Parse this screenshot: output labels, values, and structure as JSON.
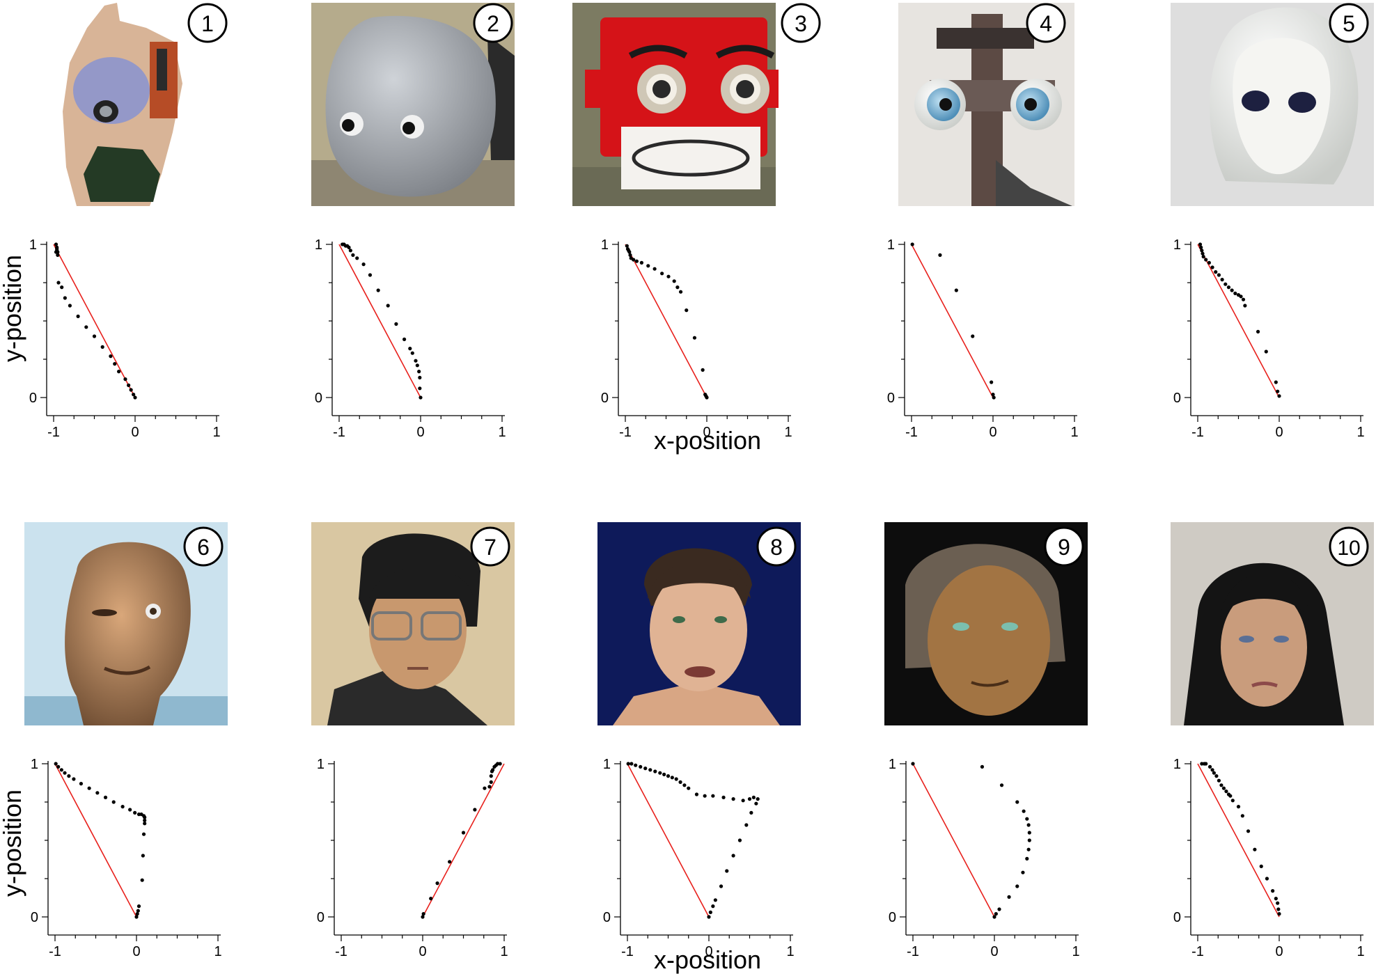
{
  "figure": {
    "ylabel": "y-position",
    "xlabel": "x-position",
    "tick_x": [
      "-1",
      "0",
      "1"
    ],
    "tick_y": [
      "0",
      "1"
    ],
    "panel_numbers": [
      "1",
      "2",
      "3",
      "4",
      "5",
      "6",
      "7",
      "8",
      "9",
      "10"
    ],
    "colors": {
      "reference_line": "#e8201c",
      "points": "#000000",
      "axis": "#000000"
    },
    "photo_subjects": [
      "humanoid robot head with exposed mechanics and a camera eye",
      "smooth grey child-like robot head with large round eyes",
      "red box-shaped robot head with big eyes and a grille mouth",
      "mechanical robot with blue spherical eyes on a frame",
      "white glossy oval robot head with dark eyes",
      "bald android head with one eye winking",
      "android copy of a man with dark hair and glasses",
      "animated young man face on a dark blue background",
      "realistic older male face with grey hair",
      "female android with long black hair"
    ]
  },
  "chart_data": [
    {
      "type": "scatter",
      "panel": "1",
      "xlim": [
        -1,
        1
      ],
      "ylim": [
        0,
        1
      ],
      "reference_line": [
        [
          -1,
          1
        ],
        [
          0,
          0
        ]
      ],
      "points": [
        [
          -0.97,
          1.0
        ],
        [
          -0.96,
          0.98
        ],
        [
          -0.96,
          0.97
        ],
        [
          -0.96,
          0.96
        ],
        [
          -0.97,
          0.95
        ],
        [
          -0.95,
          0.95
        ],
        [
          -0.95,
          0.93
        ],
        [
          -0.94,
          0.75
        ],
        [
          -0.9,
          0.72
        ],
        [
          -0.86,
          0.65
        ],
        [
          -0.8,
          0.6
        ],
        [
          -0.7,
          0.53
        ],
        [
          -0.6,
          0.46
        ],
        [
          -0.5,
          0.4
        ],
        [
          -0.4,
          0.33
        ],
        [
          -0.3,
          0.27
        ],
        [
          -0.25,
          0.22
        ],
        [
          -0.2,
          0.17
        ],
        [
          -0.12,
          0.12
        ],
        [
          -0.08,
          0.08
        ],
        [
          -0.05,
          0.05
        ],
        [
          -0.02,
          0.02
        ],
        [
          0.0,
          0.0
        ]
      ]
    },
    {
      "type": "scatter",
      "panel": "2",
      "xlim": [
        -1,
        1
      ],
      "ylim": [
        0,
        1
      ],
      "reference_line": [
        [
          -1,
          1
        ],
        [
          0,
          0
        ]
      ],
      "points": [
        [
          -0.96,
          1.0
        ],
        [
          -0.94,
          1.0
        ],
        [
          -0.92,
          0.99
        ],
        [
          -0.9,
          0.99
        ],
        [
          -0.88,
          0.98
        ],
        [
          -0.86,
          0.96
        ],
        [
          -0.83,
          0.93
        ],
        [
          -0.78,
          0.91
        ],
        [
          -0.7,
          0.87
        ],
        [
          -0.62,
          0.8
        ],
        [
          -0.52,
          0.7
        ],
        [
          -0.4,
          0.6
        ],
        [
          -0.3,
          0.48
        ],
        [
          -0.2,
          0.38
        ],
        [
          -0.13,
          0.32
        ],
        [
          -0.1,
          0.29
        ],
        [
          -0.06,
          0.24
        ],
        [
          -0.04,
          0.21
        ],
        [
          -0.02,
          0.17
        ],
        [
          -0.01,
          0.13
        ],
        [
          -0.01,
          0.06
        ],
        [
          0.0,
          0.0
        ]
      ]
    },
    {
      "type": "scatter",
      "panel": "3",
      "xlim": [
        -1,
        1
      ],
      "ylim": [
        0,
        1
      ],
      "reference_line": [
        [
          -1,
          1
        ],
        [
          0,
          0
        ]
      ],
      "points": [
        [
          -0.98,
          0.99
        ],
        [
          -0.97,
          0.97
        ],
        [
          -0.96,
          0.96
        ],
        [
          -0.95,
          0.95
        ],
        [
          -0.94,
          0.93
        ],
        [
          -0.93,
          0.91
        ],
        [
          -0.9,
          0.9
        ],
        [
          -0.86,
          0.89
        ],
        [
          -0.8,
          0.88
        ],
        [
          -0.72,
          0.86
        ],
        [
          -0.64,
          0.84
        ],
        [
          -0.55,
          0.81
        ],
        [
          -0.47,
          0.79
        ],
        [
          -0.4,
          0.76
        ],
        [
          -0.36,
          0.72
        ],
        [
          -0.32,
          0.69
        ],
        [
          -0.25,
          0.57
        ],
        [
          -0.15,
          0.39
        ],
        [
          -0.05,
          0.18
        ],
        [
          -0.02,
          0.02
        ],
        [
          -0.01,
          0.01
        ],
        [
          0.0,
          0.0
        ]
      ]
    },
    {
      "type": "scatter",
      "panel": "4",
      "xlim": [
        -1,
        1
      ],
      "ylim": [
        0,
        1
      ],
      "reference_line": [
        [
          -1,
          1
        ],
        [
          0,
          0
        ]
      ],
      "points": [
        [
          -0.99,
          1.0
        ],
        [
          -0.65,
          0.93
        ],
        [
          -0.45,
          0.7
        ],
        [
          -0.25,
          0.4
        ],
        [
          -0.02,
          0.1
        ],
        [
          0.0,
          0.02
        ],
        [
          0.01,
          0.0
        ]
      ]
    },
    {
      "type": "scatter",
      "panel": "5",
      "xlim": [
        -1,
        1
      ],
      "ylim": [
        0,
        1
      ],
      "reference_line": [
        [
          -1,
          1
        ],
        [
          0,
          0
        ]
      ],
      "points": [
        [
          -0.97,
          1.0
        ],
        [
          -0.96,
          0.98
        ],
        [
          -0.95,
          0.96
        ],
        [
          -0.94,
          0.94
        ],
        [
          -0.93,
          0.92
        ],
        [
          -0.9,
          0.9
        ],
        [
          -0.86,
          0.88
        ],
        [
          -0.82,
          0.85
        ],
        [
          -0.78,
          0.82
        ],
        [
          -0.74,
          0.8
        ],
        [
          -0.7,
          0.77
        ],
        [
          -0.66,
          0.74
        ],
        [
          -0.62,
          0.72
        ],
        [
          -0.58,
          0.7
        ],
        [
          -0.54,
          0.68
        ],
        [
          -0.5,
          0.67
        ],
        [
          -0.47,
          0.66
        ],
        [
          -0.44,
          0.64
        ],
        [
          -0.42,
          0.6
        ],
        [
          -0.26,
          0.43
        ],
        [
          -0.16,
          0.3
        ],
        [
          -0.04,
          0.1
        ],
        [
          -0.02,
          0.04
        ],
        [
          0.0,
          0.01
        ]
      ]
    },
    {
      "type": "scatter",
      "panel": "6",
      "xlim": [
        -1,
        1
      ],
      "ylim": [
        0,
        1
      ],
      "reference_line": [
        [
          -1,
          1
        ],
        [
          0,
          0
        ]
      ],
      "points": [
        [
          -0.99,
          1.0
        ],
        [
          -0.96,
          0.98
        ],
        [
          -0.92,
          0.96
        ],
        [
          -0.88,
          0.94
        ],
        [
          -0.83,
          0.92
        ],
        [
          -0.77,
          0.9
        ],
        [
          -0.68,
          0.87
        ],
        [
          -0.58,
          0.84
        ],
        [
          -0.48,
          0.81
        ],
        [
          -0.38,
          0.78
        ],
        [
          -0.28,
          0.75
        ],
        [
          -0.17,
          0.72
        ],
        [
          -0.08,
          0.7
        ],
        [
          -0.02,
          0.68
        ],
        [
          0.03,
          0.67
        ],
        [
          0.06,
          0.67
        ],
        [
          0.09,
          0.66
        ],
        [
          0.1,
          0.65
        ],
        [
          0.1,
          0.63
        ],
        [
          0.1,
          0.61
        ],
        [
          0.09,
          0.54
        ],
        [
          0.08,
          0.4
        ],
        [
          0.07,
          0.24
        ],
        [
          0.03,
          0.07
        ],
        [
          0.02,
          0.04
        ],
        [
          0.01,
          0.02
        ],
        [
          0.0,
          0.0
        ]
      ]
    },
    {
      "type": "scatter",
      "panel": "7",
      "xlim": [
        -1,
        1
      ],
      "ylim": [
        0,
        1
      ],
      "reference_line": [
        [
          0,
          0
        ],
        [
          1,
          1
        ]
      ],
      "points": [
        [
          0.0,
          0.0
        ],
        [
          0.01,
          0.02
        ],
        [
          0.1,
          0.12
        ],
        [
          0.18,
          0.22
        ],
        [
          0.33,
          0.36
        ],
        [
          0.5,
          0.55
        ],
        [
          0.64,
          0.7
        ],
        [
          0.76,
          0.84
        ],
        [
          0.82,
          0.85
        ],
        [
          0.84,
          0.88
        ],
        [
          0.84,
          0.92
        ],
        [
          0.85,
          0.95
        ],
        [
          0.86,
          0.96
        ],
        [
          0.88,
          0.98
        ],
        [
          0.9,
          0.99
        ],
        [
          0.92,
          1.0
        ],
        [
          0.95,
          1.0
        ]
      ]
    },
    {
      "type": "scatter",
      "panel": "8",
      "xlim": [
        -1,
        1
      ],
      "ylim": [
        0,
        1
      ],
      "reference_line": [
        [
          -1,
          1
        ],
        [
          0,
          0
        ]
      ],
      "points": [
        [
          -0.99,
          1.0
        ],
        [
          -0.95,
          1.0
        ],
        [
          -0.9,
          0.99
        ],
        [
          -0.84,
          0.98
        ],
        [
          -0.78,
          0.97
        ],
        [
          -0.72,
          0.96
        ],
        [
          -0.66,
          0.95
        ],
        [
          -0.6,
          0.94
        ],
        [
          -0.55,
          0.93
        ],
        [
          -0.5,
          0.92
        ],
        [
          -0.45,
          0.91
        ],
        [
          -0.4,
          0.9
        ],
        [
          -0.35,
          0.88
        ],
        [
          -0.3,
          0.86
        ],
        [
          -0.25,
          0.84
        ],
        [
          -0.15,
          0.8
        ],
        [
          -0.05,
          0.79
        ],
        [
          0.05,
          0.79
        ],
        [
          0.18,
          0.78
        ],
        [
          0.3,
          0.77
        ],
        [
          0.42,
          0.76
        ],
        [
          0.5,
          0.77
        ],
        [
          0.55,
          0.78
        ],
        [
          0.6,
          0.77
        ],
        [
          0.58,
          0.74
        ],
        [
          0.52,
          0.68
        ],
        [
          0.46,
          0.6
        ],
        [
          0.38,
          0.5
        ],
        [
          0.3,
          0.4
        ],
        [
          0.22,
          0.3
        ],
        [
          0.15,
          0.2
        ],
        [
          0.08,
          0.11
        ],
        [
          0.05,
          0.07
        ],
        [
          0.02,
          0.03
        ],
        [
          0.0,
          0.0
        ]
      ]
    },
    {
      "type": "scatter",
      "panel": "9",
      "xlim": [
        -1,
        1
      ],
      "ylim": [
        0,
        1
      ],
      "reference_line": [
        [
          -1,
          1
        ],
        [
          0,
          0
        ]
      ],
      "points": [
        [
          -1.0,
          1.0
        ],
        [
          -0.15,
          0.98
        ],
        [
          0.09,
          0.86
        ],
        [
          0.28,
          0.75
        ],
        [
          0.36,
          0.69
        ],
        [
          0.4,
          0.64
        ],
        [
          0.42,
          0.6
        ],
        [
          0.43,
          0.55
        ],
        [
          0.43,
          0.5
        ],
        [
          0.42,
          0.44
        ],
        [
          0.4,
          0.38
        ],
        [
          0.35,
          0.29
        ],
        [
          0.28,
          0.2
        ],
        [
          0.18,
          0.13
        ],
        [
          0.06,
          0.05
        ],
        [
          0.02,
          0.02
        ],
        [
          0.0,
          0.0
        ]
      ]
    },
    {
      "type": "scatter",
      "panel": "10",
      "xlim": [
        -1,
        1
      ],
      "ylim": [
        0,
        1
      ],
      "reference_line": [
        [
          -1,
          1
        ],
        [
          0,
          0
        ]
      ],
      "points": [
        [
          -0.95,
          1.0
        ],
        [
          -0.92,
          1.0
        ],
        [
          -0.9,
          1.0
        ],
        [
          -0.85,
          0.98
        ],
        [
          -0.82,
          0.96
        ],
        [
          -0.8,
          0.94
        ],
        [
          -0.77,
          0.92
        ],
        [
          -0.74,
          0.89
        ],
        [
          -0.71,
          0.86
        ],
        [
          -0.68,
          0.84
        ],
        [
          -0.65,
          0.82
        ],
        [
          -0.62,
          0.8
        ],
        [
          -0.6,
          0.79
        ],
        [
          -0.57,
          0.76
        ],
        [
          -0.5,
          0.72
        ],
        [
          -0.45,
          0.66
        ],
        [
          -0.38,
          0.56
        ],
        [
          -0.3,
          0.44
        ],
        [
          -0.22,
          0.33
        ],
        [
          -0.15,
          0.25
        ],
        [
          -0.08,
          0.17
        ],
        [
          -0.04,
          0.12
        ],
        [
          -0.02,
          0.09
        ],
        [
          -0.01,
          0.05
        ],
        [
          0.0,
          0.02
        ]
      ]
    }
  ]
}
